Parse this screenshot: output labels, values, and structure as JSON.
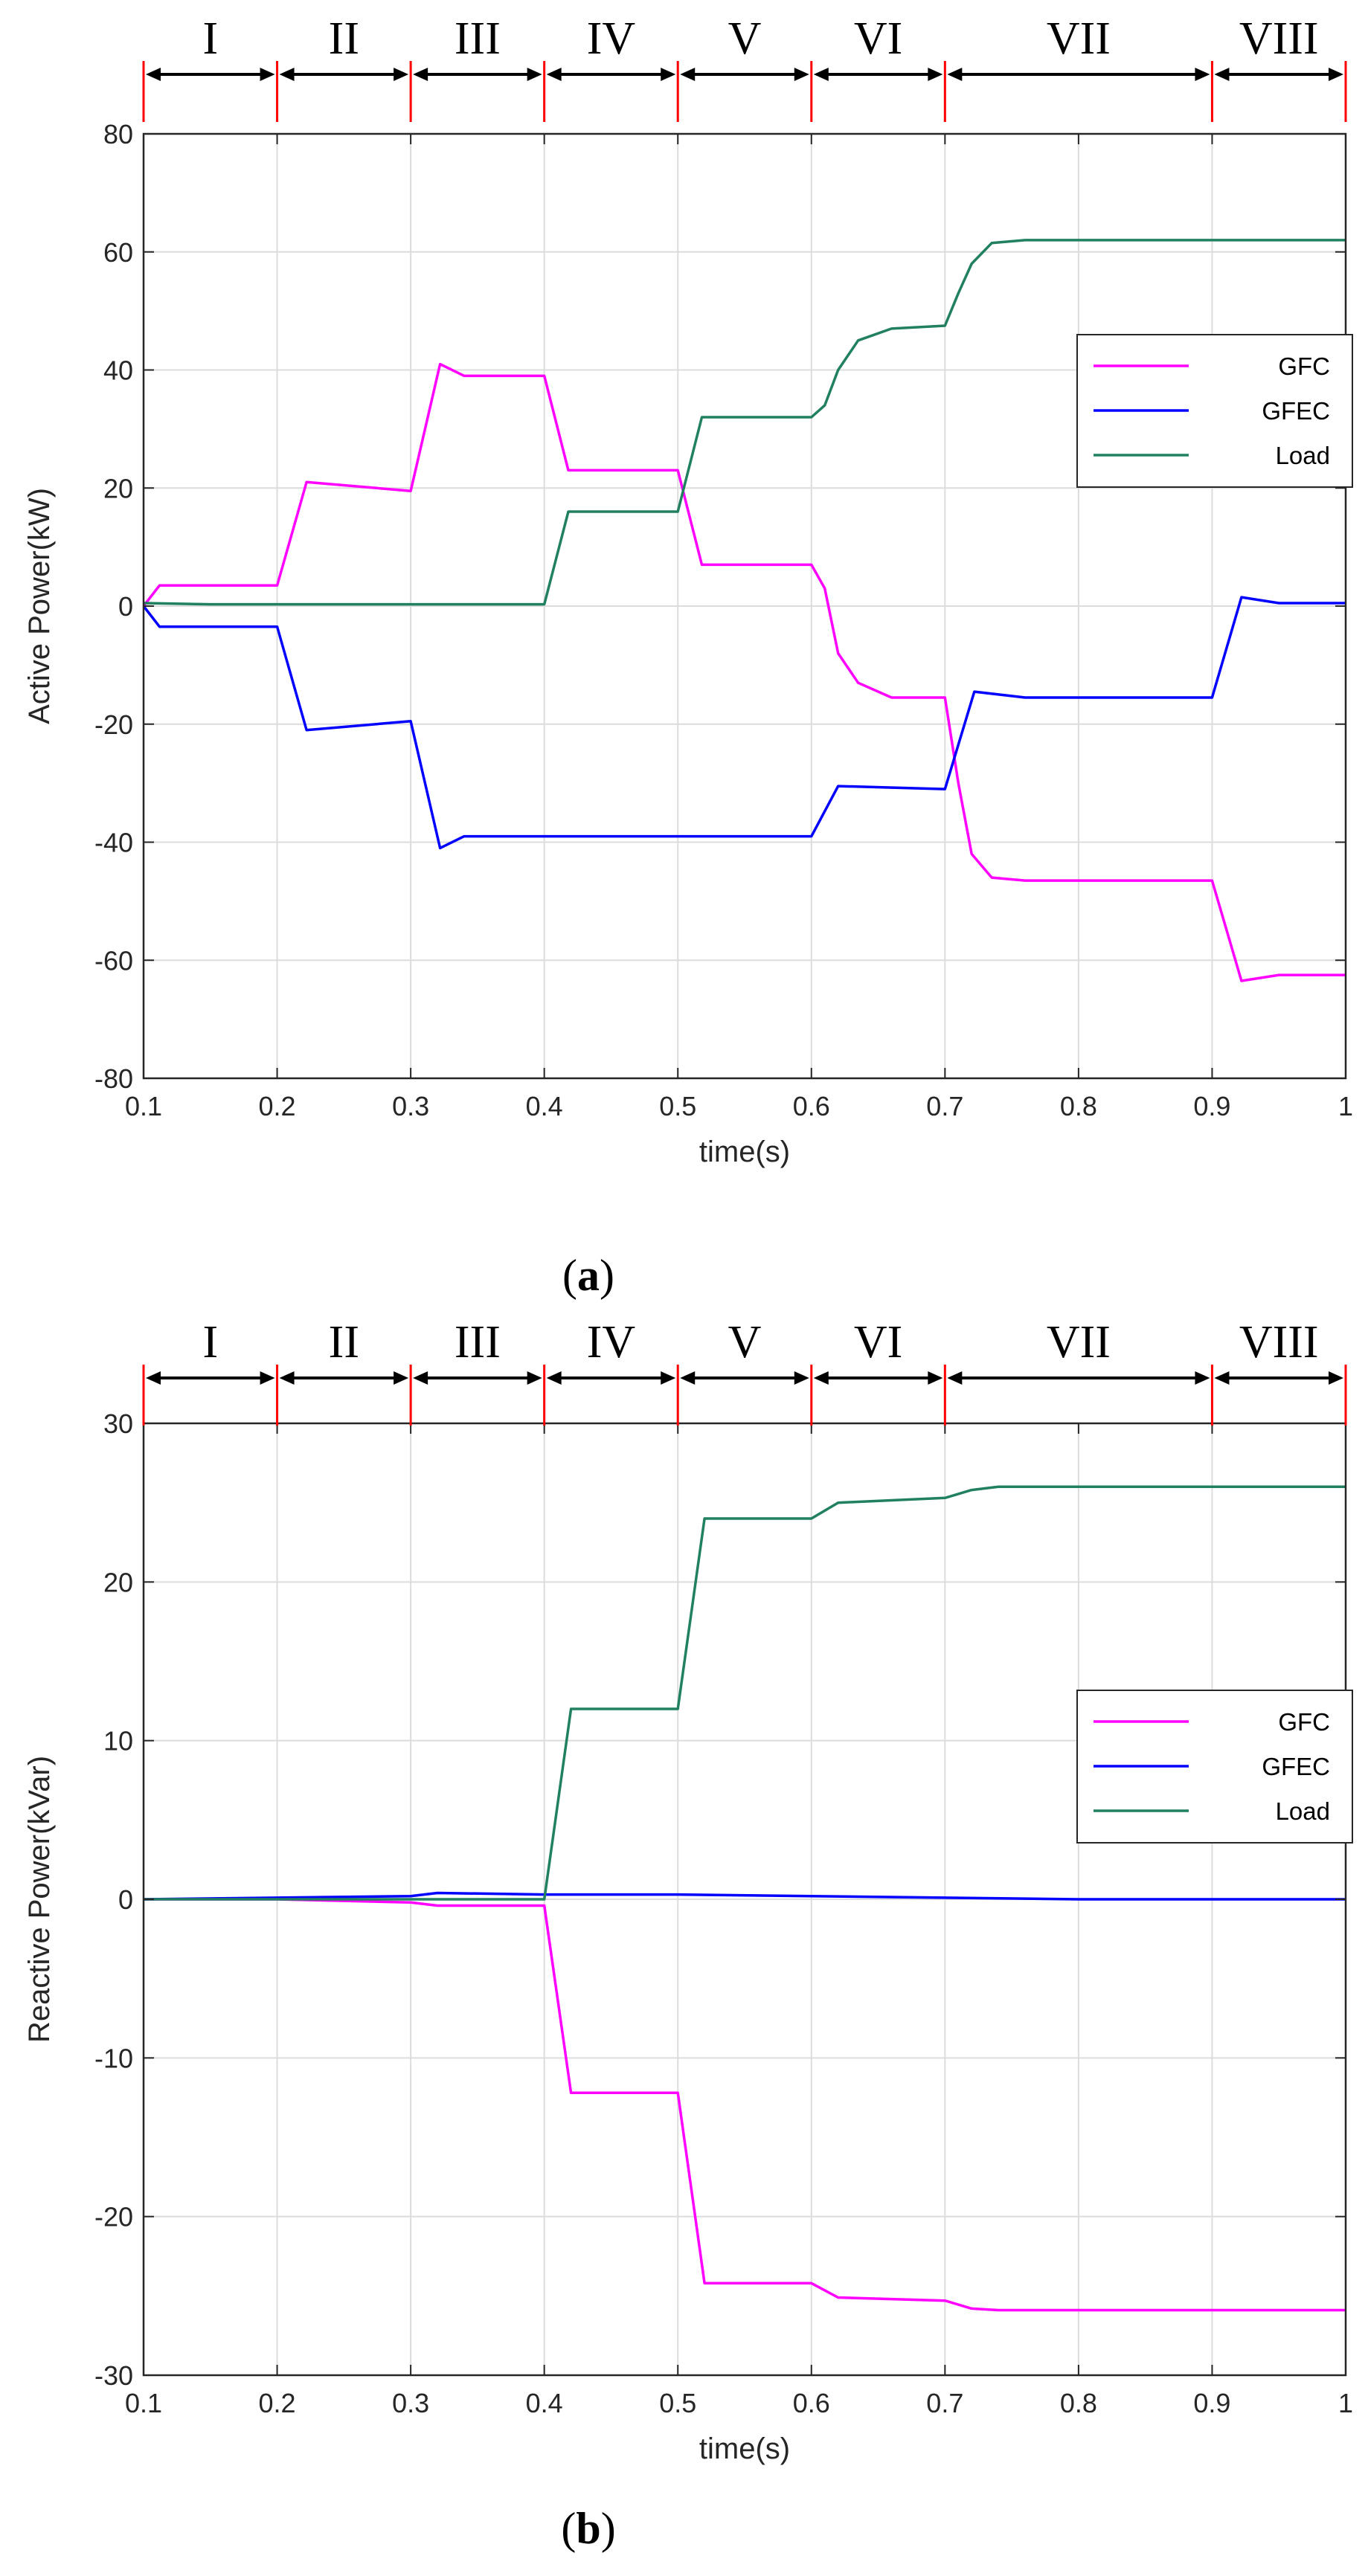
{
  "colors": {
    "GFC": "#ff00ff",
    "GFEC": "#0000ff",
    "Load": "#208060",
    "phase_marker": "#ff0000",
    "grid": "#dcdcdc"
  },
  "chart_data": [
    {
      "type": "line",
      "panel": "a",
      "caption": {
        "open": "(",
        "letter": "a",
        "close": ")"
      },
      "xlabel": "time(s)",
      "ylabel": "Active Power(kW)",
      "xlim": [
        0.1,
        1.0
      ],
      "ylim": [
        -80,
        80
      ],
      "xticks": [
        0.1,
        0.2,
        0.3,
        0.4,
        0.5,
        0.6,
        0.7,
        0.8,
        0.9,
        1.0
      ],
      "xtick_labels": [
        "0.1",
        "0.2",
        "0.3",
        "0.4",
        "0.5",
        "0.6",
        "0.7",
        "0.8",
        "0.9",
        "1"
      ],
      "yticks": [
        -80,
        -60,
        -40,
        -20,
        0,
        20,
        40,
        60,
        80
      ],
      "ytick_labels": [
        "-80",
        "-60",
        "-40",
        "-20",
        "0",
        "20",
        "40",
        "60",
        "80"
      ],
      "grid": true,
      "legend_position": "right-middle",
      "phases": [
        {
          "label": "I",
          "start": 0.1,
          "end": 0.2
        },
        {
          "label": "II",
          "start": 0.2,
          "end": 0.3
        },
        {
          "label": "III",
          "start": 0.3,
          "end": 0.4
        },
        {
          "label": "IV",
          "start": 0.4,
          "end": 0.5
        },
        {
          "label": "V",
          "start": 0.5,
          "end": 0.6
        },
        {
          "label": "VI",
          "start": 0.6,
          "end": 0.7
        },
        {
          "label": "VII",
          "start": 0.7,
          "end": 0.9
        },
        {
          "label": "VIII",
          "start": 0.9,
          "end": 1.0
        }
      ],
      "series": [
        {
          "name": "GFC",
          "color_key": "GFC",
          "x": [
            0.1,
            0.112,
            0.2,
            0.222,
            0.3,
            0.322,
            0.34,
            0.4,
            0.418,
            0.5,
            0.518,
            0.6,
            0.61,
            0.62,
            0.635,
            0.66,
            0.7,
            0.71,
            0.72,
            0.735,
            0.76,
            0.9,
            0.922,
            0.95,
            1.0
          ],
          "y": [
            0,
            3.5,
            3.5,
            21,
            19.5,
            41,
            39,
            39,
            23,
            23,
            7,
            7,
            3,
            -8,
            -13,
            -15.5,
            -15.5,
            -30,
            -42,
            -46,
            -46.5,
            -46.5,
            -63.5,
            -62.5,
            -62.5
          ]
        },
        {
          "name": "GFEC",
          "color_key": "GFEC",
          "x": [
            0.1,
            0.112,
            0.2,
            0.222,
            0.3,
            0.322,
            0.34,
            0.4,
            0.5,
            0.6,
            0.62,
            0.7,
            0.722,
            0.76,
            0.9,
            0.922,
            0.95,
            1.0
          ],
          "y": [
            0,
            -3.5,
            -3.5,
            -21,
            -19.5,
            -41,
            -39,
            -39,
            -39,
            -39,
            -30.5,
            -31,
            -14.5,
            -15.5,
            -15.5,
            1.5,
            0.5,
            0.5
          ]
        },
        {
          "name": "Load",
          "color_key": "Load",
          "x": [
            0.1,
            0.15,
            0.4,
            0.418,
            0.5,
            0.518,
            0.6,
            0.61,
            0.62,
            0.635,
            0.66,
            0.7,
            0.71,
            0.72,
            0.735,
            0.76,
            1.0
          ],
          "y": [
            0.5,
            0.3,
            0.3,
            16,
            16,
            32,
            32,
            34,
            40,
            45,
            47,
            47.5,
            53,
            58,
            61.5,
            62,
            62
          ]
        }
      ]
    },
    {
      "type": "line",
      "panel": "b",
      "caption": {
        "open": "(",
        "letter": "b",
        "close": ")"
      },
      "xlabel": "time(s)",
      "ylabel": "Reactive Power(kVar)",
      "xlim": [
        0.1,
        1.0
      ],
      "ylim": [
        -30,
        30
      ],
      "xticks": [
        0.1,
        0.2,
        0.3,
        0.4,
        0.5,
        0.6,
        0.7,
        0.8,
        0.9,
        1.0
      ],
      "xtick_labels": [
        "0.1",
        "0.2",
        "0.3",
        "0.4",
        "0.5",
        "0.6",
        "0.7",
        "0.8",
        "0.9",
        "1"
      ],
      "yticks": [
        -30,
        -20,
        -10,
        0,
        10,
        20,
        30
      ],
      "ytick_labels": [
        "-30",
        "-20",
        "-10",
        "0",
        "10",
        "20",
        "30"
      ],
      "grid": true,
      "legend_position": "right-middle",
      "phases": [
        {
          "label": "I",
          "start": 0.1,
          "end": 0.2
        },
        {
          "label": "II",
          "start": 0.2,
          "end": 0.3
        },
        {
          "label": "III",
          "start": 0.3,
          "end": 0.4
        },
        {
          "label": "IV",
          "start": 0.4,
          "end": 0.5
        },
        {
          "label": "V",
          "start": 0.5,
          "end": 0.6
        },
        {
          "label": "VI",
          "start": 0.6,
          "end": 0.7
        },
        {
          "label": "VII",
          "start": 0.7,
          "end": 0.9
        },
        {
          "label": "VIII",
          "start": 0.9,
          "end": 1.0
        }
      ],
      "series": [
        {
          "name": "GFC",
          "color_key": "GFC",
          "x": [
            0.1,
            0.2,
            0.3,
            0.32,
            0.4,
            0.42,
            0.5,
            0.52,
            0.6,
            0.62,
            0.7,
            0.72,
            0.74,
            1.0
          ],
          "y": [
            0,
            0,
            -0.2,
            -0.4,
            -0.4,
            -12.2,
            -12.2,
            -24.2,
            -24.2,
            -25.1,
            -25.3,
            -25.8,
            -25.9,
            -25.9
          ]
        },
        {
          "name": "GFEC",
          "color_key": "GFEC",
          "x": [
            0.1,
            0.2,
            0.3,
            0.32,
            0.4,
            0.5,
            0.6,
            0.7,
            0.8,
            1.0
          ],
          "y": [
            0,
            0.1,
            0.2,
            0.4,
            0.3,
            0.3,
            0.2,
            0.1,
            0,
            0
          ]
        },
        {
          "name": "Load",
          "color_key": "Load",
          "x": [
            0.1,
            0.4,
            0.42,
            0.5,
            0.52,
            0.6,
            0.62,
            0.7,
            0.72,
            0.74,
            1.0
          ],
          "y": [
            0,
            0,
            12,
            12,
            24,
            24,
            25,
            25.3,
            25.8,
            26,
            26
          ]
        }
      ]
    }
  ]
}
